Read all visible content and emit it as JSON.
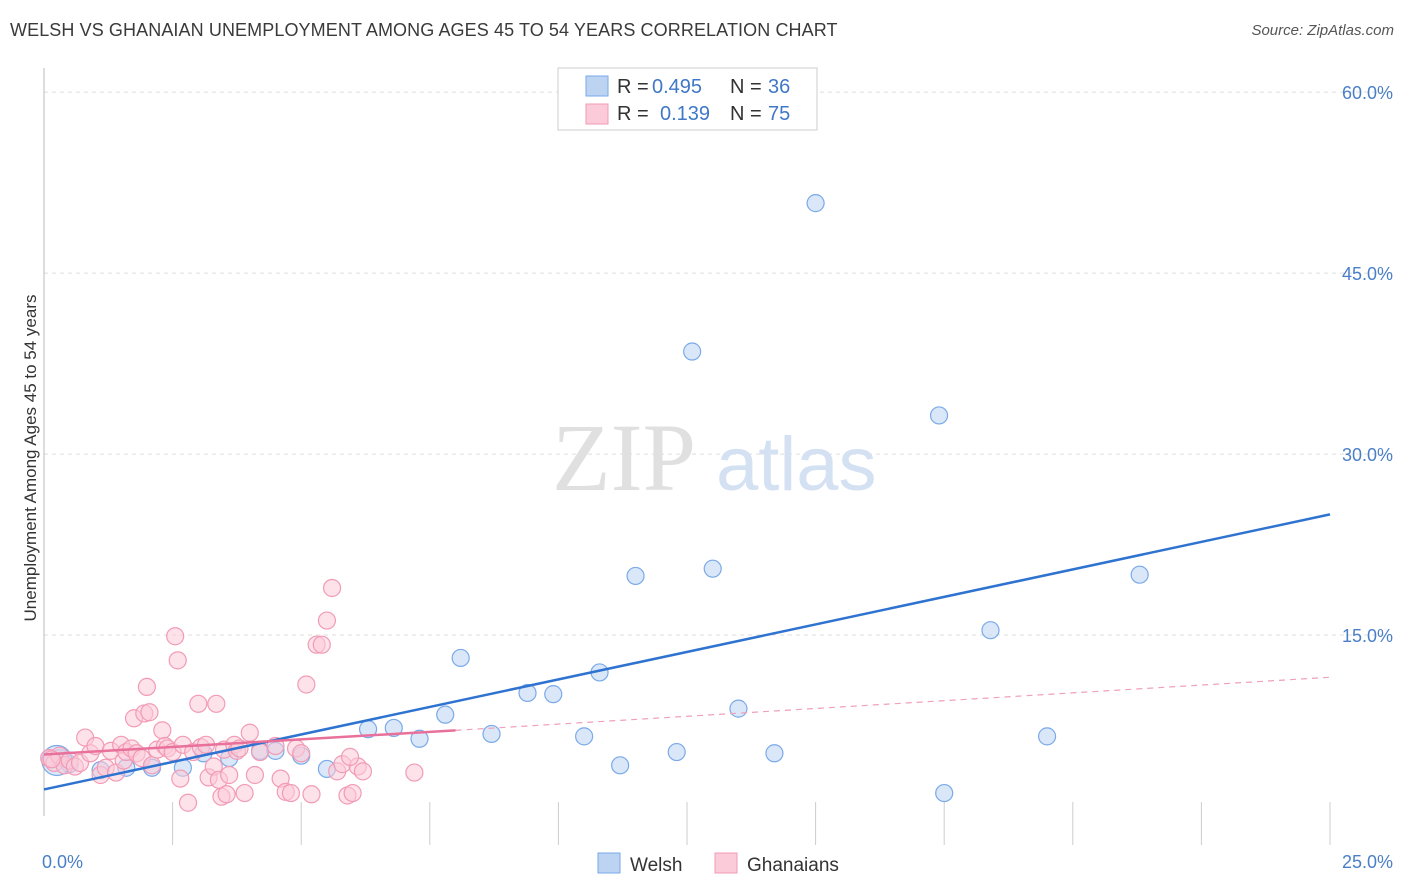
{
  "title": "WELSH VS GHANAIAN UNEMPLOYMENT AMONG AGES 45 TO 54 YEARS CORRELATION CHART",
  "source": "Source: ZipAtlas.com",
  "watermark": {
    "zip": "ZIP",
    "atlas": "atlas"
  },
  "chart_data": {
    "type": "scatter",
    "title": "WELSH VS GHANAIAN UNEMPLOYMENT AMONG AGES 45 TO 54 YEARS CORRELATION CHART",
    "xlabel": "",
    "ylabel": "Unemployment Among Ages 45 to 54 years",
    "xlim": [
      0,
      25
    ],
    "ylim": [
      0,
      62
    ],
    "x_tick_labels": [
      "0.0%",
      "25.0%"
    ],
    "y_ticks": [
      15,
      30,
      45,
      60
    ],
    "y_tick_labels": [
      "15.0%",
      "30.0%",
      "45.0%",
      "60.0%"
    ],
    "legend": [
      {
        "r_label": "R =",
        "r_value": "0.495",
        "n_label": "N =",
        "n_value": "36"
      },
      {
        "r_label": "R =",
        "r_value": "0.139",
        "n_label": "N =",
        "n_value": "75"
      }
    ],
    "series": [
      {
        "name": "Welsh",
        "color": "#7aaae8",
        "fill": "#bcd4f2",
        "trend": {
          "x0": 0,
          "y0": 2.2,
          "x1": 25,
          "y1": 25.0
        },
        "points": [
          [
            0.3,
            4.8
          ],
          [
            0.5,
            4.3
          ],
          [
            1.1,
            3.8
          ],
          [
            1.6,
            4.0
          ],
          [
            2.1,
            4.0
          ],
          [
            2.7,
            4.0
          ],
          [
            3.1,
            5.2
          ],
          [
            3.6,
            4.8
          ],
          [
            4.2,
            5.4
          ],
          [
            4.5,
            5.4
          ],
          [
            5.0,
            5.0
          ],
          [
            5.5,
            3.9
          ],
          [
            6.3,
            7.2
          ],
          [
            6.8,
            7.3
          ],
          [
            7.3,
            6.4
          ],
          [
            7.8,
            8.4
          ],
          [
            8.1,
            13.1
          ],
          [
            8.7,
            6.8
          ],
          [
            9.4,
            10.2
          ],
          [
            9.9,
            10.1
          ],
          [
            10.5,
            6.6
          ],
          [
            10.8,
            11.9
          ],
          [
            11.2,
            4.2
          ],
          [
            11.5,
            19.9
          ],
          [
            12.3,
            5.3
          ],
          [
            12.6,
            38.5
          ],
          [
            13.0,
            20.5
          ],
          [
            13.5,
            8.9
          ],
          [
            14.2,
            5.2
          ],
          [
            15.0,
            50.8
          ],
          [
            17.4,
            33.2
          ],
          [
            17.5,
            1.9
          ],
          [
            18.4,
            15.4
          ],
          [
            19.5,
            6.6
          ],
          [
            21.3,
            20.0
          ],
          [
            0.25,
            4.6
          ]
        ]
      },
      {
        "name": "Ghanaians",
        "color": "#f29bb5",
        "fill": "#fbcbd9",
        "trend": {
          "x0": 0,
          "y0": 5.1,
          "x1": 8.0,
          "y1": 7.1
        },
        "trend_dashed": {
          "x0": 8.0,
          "y0": 7.1,
          "x1": 25,
          "y1": 11.5
        },
        "points": [
          [
            0.1,
            4.8
          ],
          [
            0.2,
            4.4
          ],
          [
            0.3,
            5.0
          ],
          [
            0.4,
            4.2
          ],
          [
            0.5,
            4.6
          ],
          [
            0.6,
            4.1
          ],
          [
            0.7,
            4.4
          ],
          [
            0.8,
            6.5
          ],
          [
            0.9,
            5.2
          ],
          [
            1.0,
            5.8
          ],
          [
            1.1,
            3.4
          ],
          [
            1.2,
            4.0
          ],
          [
            1.3,
            5.4
          ],
          [
            1.4,
            3.6
          ],
          [
            1.5,
            5.9
          ],
          [
            1.55,
            4.6
          ],
          [
            1.6,
            5.3
          ],
          [
            1.7,
            5.6
          ],
          [
            1.75,
            8.1
          ],
          [
            1.8,
            5.2
          ],
          [
            1.9,
            4.8
          ],
          [
            1.95,
            8.5
          ],
          [
            2.0,
            10.7
          ],
          [
            2.05,
            8.6
          ],
          [
            2.1,
            4.2
          ],
          [
            2.2,
            5.5
          ],
          [
            2.3,
            7.1
          ],
          [
            2.35,
            5.8
          ],
          [
            2.4,
            5.6
          ],
          [
            2.5,
            5.3
          ],
          [
            2.55,
            14.9
          ],
          [
            2.6,
            12.9
          ],
          [
            2.65,
            3.1
          ],
          [
            2.7,
            5.9
          ],
          [
            2.8,
            1.1
          ],
          [
            2.9,
            5.3
          ],
          [
            3.0,
            9.3
          ],
          [
            3.05,
            5.7
          ],
          [
            3.15,
            5.9
          ],
          [
            3.2,
            3.2
          ],
          [
            3.3,
            4.1
          ],
          [
            3.35,
            9.3
          ],
          [
            3.4,
            3.0
          ],
          [
            3.45,
            1.6
          ],
          [
            3.5,
            5.5
          ],
          [
            3.55,
            1.8
          ],
          [
            3.6,
            3.4
          ],
          [
            3.7,
            5.9
          ],
          [
            3.75,
            5.4
          ],
          [
            3.8,
            5.6
          ],
          [
            3.9,
            1.9
          ],
          [
            4.0,
            6.9
          ],
          [
            4.1,
            3.4
          ],
          [
            4.2,
            5.3
          ],
          [
            4.5,
            5.8
          ],
          [
            4.6,
            3.1
          ],
          [
            4.7,
            2.0
          ],
          [
            4.8,
            1.9
          ],
          [
            4.9,
            5.6
          ],
          [
            5.0,
            5.2
          ],
          [
            5.1,
            10.9
          ],
          [
            5.2,
            1.8
          ],
          [
            5.3,
            14.2
          ],
          [
            5.4,
            14.2
          ],
          [
            5.5,
            16.2
          ],
          [
            5.6,
            18.9
          ],
          [
            5.7,
            3.7
          ],
          [
            5.8,
            4.3
          ],
          [
            5.9,
            1.7
          ],
          [
            6.0,
            1.9
          ],
          [
            6.1,
            4.1
          ],
          [
            6.2,
            3.7
          ],
          [
            5.95,
            4.9
          ],
          [
            7.2,
            3.6
          ],
          [
            0.15,
            4.7
          ]
        ]
      }
    ]
  },
  "bottom_legend": [
    {
      "label": "Welsh"
    },
    {
      "label": "Ghanaians"
    }
  ]
}
